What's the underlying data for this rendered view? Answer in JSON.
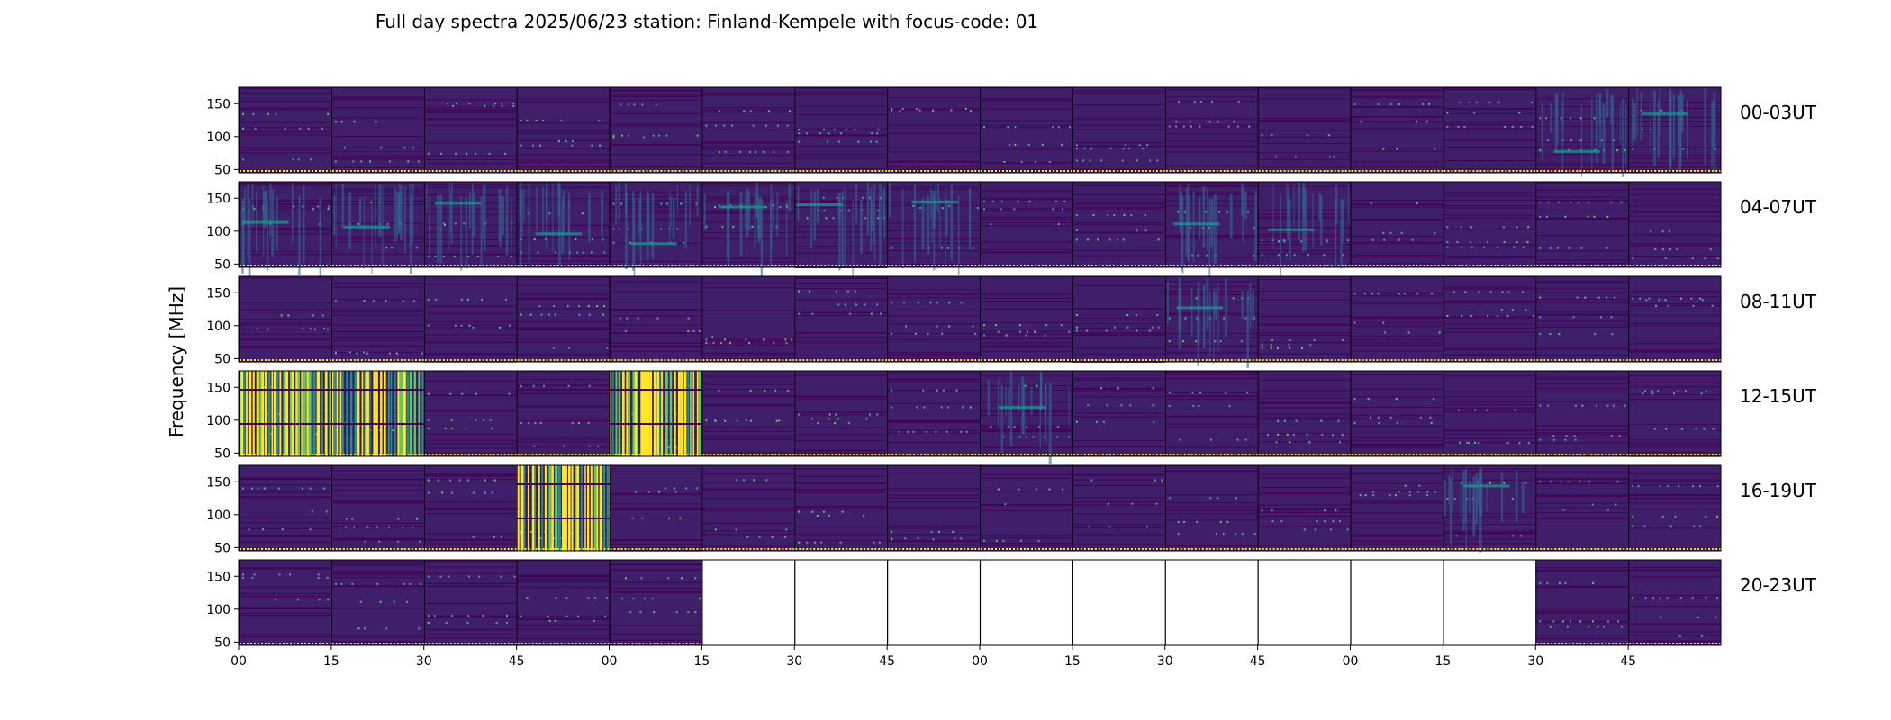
{
  "title": "Full day spectra 2025/06/23 station: Finland-Kempele with focus-code: 01",
  "chart_data": {
    "type": "heatmap",
    "title": "Full day spectra 2025/06/23 station: Finland-Kempele with focus-code: 01",
    "ylabel": "Frequency [MHz]",
    "xlabel": "",
    "ylim": [
      45,
      175
    ],
    "y_ticks": [
      "50",
      "100",
      "150"
    ],
    "x_ticks": [
      "00",
      "15",
      "30",
      "45",
      "00",
      "15",
      "30",
      "45",
      "00",
      "15",
      "30",
      "45",
      "00",
      "15",
      "30",
      "45"
    ],
    "colormap": {
      "background": "#3f1f69",
      "low": "#440154",
      "mid": "#31688e",
      "teal": "#21918c",
      "green": "#5ec962",
      "high": "#fde725"
    },
    "rows": [
      {
        "label": "00-03UT",
        "panels": [
          "quiet",
          "quiet",
          "quiet",
          "quiet",
          "quiet",
          "quiet",
          "quiet",
          "quiet",
          "quiet",
          "quiet",
          "quiet",
          "quiet",
          "quiet",
          "quiet",
          "moderate",
          "moderate"
        ]
      },
      {
        "label": "04-07UT",
        "panels": [
          "moderate",
          "moderate",
          "moderate",
          "moderate",
          "moderate",
          "moderate",
          "moderate",
          "moderate",
          "quiet",
          "quiet",
          "moderate",
          "moderate",
          "quiet",
          "quiet",
          "quiet",
          "quiet"
        ]
      },
      {
        "label": "08-11UT",
        "panels": [
          "quiet",
          "quiet",
          "quiet",
          "quiet",
          "quiet",
          "quiet",
          "quiet",
          "quiet",
          "quiet",
          "quiet",
          "moderate",
          "quiet",
          "quiet",
          "quiet",
          "quiet",
          "quiet"
        ]
      },
      {
        "label": "12-15UT",
        "panels": [
          "strong",
          "strong",
          "quiet",
          "quiet",
          "strong",
          "quiet",
          "quiet",
          "quiet",
          "moderate",
          "quiet",
          "quiet",
          "quiet",
          "quiet",
          "quiet",
          "quiet",
          "quiet"
        ]
      },
      {
        "label": "16-19UT",
        "panels": [
          "quiet",
          "quiet",
          "quiet",
          "strong",
          "quiet",
          "quiet",
          "quiet",
          "quiet",
          "quiet",
          "quiet",
          "quiet",
          "quiet",
          "quiet",
          "moderate",
          "quiet",
          "quiet"
        ]
      },
      {
        "label": "20-23UT",
        "panels": [
          "quiet",
          "quiet",
          "quiet",
          "quiet",
          "quiet",
          "empty",
          "empty",
          "empty",
          "empty",
          "empty",
          "empty",
          "empty",
          "empty",
          "empty",
          "quiet",
          "quiet"
        ]
      }
    ]
  }
}
